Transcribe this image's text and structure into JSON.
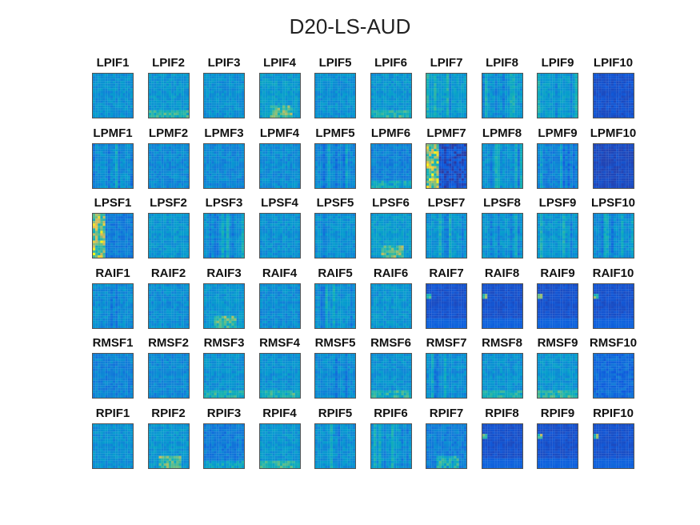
{
  "chart_data": {
    "type": "heatmap",
    "title": "D20-LS-AUD",
    "colormap": "parula",
    "colors": {
      "low": "#352a87",
      "mid": "#1f9ed8",
      "high": "#f9fb0e"
    },
    "rows": [
      "LPIF",
      "LPMF",
      "LPSF",
      "RAIF",
      "RMSF",
      "RPIF"
    ],
    "panels": [
      [
        {
          "label": "LPIF1",
          "level": 0.4,
          "pattern": "none"
        },
        {
          "label": "LPIF2",
          "level": 0.42,
          "pattern": "bottomband"
        },
        {
          "label": "LPIF3",
          "level": 0.4,
          "pattern": "none"
        },
        {
          "label": "LPIF4",
          "level": 0.45,
          "pattern": "hotspot"
        },
        {
          "label": "LPIF5",
          "level": 0.4,
          "pattern": "none"
        },
        {
          "label": "LPIF6",
          "level": 0.42,
          "pattern": "bottomband"
        },
        {
          "label": "LPIF7",
          "level": 0.45,
          "pattern": "stripes"
        },
        {
          "label": "LPIF8",
          "level": 0.42,
          "pattern": "stripes"
        },
        {
          "label": "LPIF9",
          "level": 0.45,
          "pattern": "stripes"
        },
        {
          "label": "LPIF10",
          "level": 0.12,
          "pattern": "none"
        }
      ],
      [
        {
          "label": "LPMF1",
          "level": 0.38,
          "pattern": "stripes"
        },
        {
          "label": "LPMF2",
          "level": 0.36,
          "pattern": "none"
        },
        {
          "label": "LPMF3",
          "level": 0.36,
          "pattern": "none"
        },
        {
          "label": "LPMF4",
          "level": 0.38,
          "pattern": "none"
        },
        {
          "label": "LPMF5",
          "level": 0.35,
          "pattern": "stripes"
        },
        {
          "label": "LPMF6",
          "level": 0.33,
          "pattern": "bottomband"
        },
        {
          "label": "LPMF7",
          "level": 0.12,
          "pattern": "leftbright"
        },
        {
          "label": "LPMF8",
          "level": 0.4,
          "pattern": "stripes"
        },
        {
          "label": "LPMF9",
          "level": 0.33,
          "pattern": "stripes"
        },
        {
          "label": "LPMF10",
          "level": 0.1,
          "pattern": "none"
        }
      ],
      [
        {
          "label": "LPSF1",
          "level": 0.3,
          "pattern": "leftbright"
        },
        {
          "label": "LPSF2",
          "level": 0.42,
          "pattern": "none"
        },
        {
          "label": "LPSF3",
          "level": 0.4,
          "pattern": "stripes"
        },
        {
          "label": "LPSF4",
          "level": 0.4,
          "pattern": "none"
        },
        {
          "label": "LPSF5",
          "level": 0.4,
          "pattern": "stripes"
        },
        {
          "label": "LPSF6",
          "level": 0.45,
          "pattern": "hotspot"
        },
        {
          "label": "LPSF7",
          "level": 0.42,
          "pattern": "stripes"
        },
        {
          "label": "LPSF8",
          "level": 0.42,
          "pattern": "stripes"
        },
        {
          "label": "LPSF9",
          "level": 0.42,
          "pattern": "stripes"
        },
        {
          "label": "LPSF10",
          "level": 0.38,
          "pattern": "stripes"
        }
      ],
      [
        {
          "label": "RAIF1",
          "level": 0.38,
          "pattern": "stripes"
        },
        {
          "label": "RAIF2",
          "level": 0.38,
          "pattern": "none"
        },
        {
          "label": "RAIF3",
          "level": 0.42,
          "pattern": "hotspot"
        },
        {
          "label": "RAIF4",
          "level": 0.38,
          "pattern": "none"
        },
        {
          "label": "RAIF5",
          "level": 0.4,
          "pattern": "stripes"
        },
        {
          "label": "RAIF6",
          "level": 0.42,
          "pattern": "none"
        },
        {
          "label": "RAIF7",
          "level": 0.12,
          "pattern": "leftdot"
        },
        {
          "label": "RAIF8",
          "level": 0.12,
          "pattern": "leftdot"
        },
        {
          "label": "RAIF9",
          "level": 0.12,
          "pattern": "leftdot"
        },
        {
          "label": "RAIF10",
          "level": 0.12,
          "pattern": "leftdot"
        }
      ],
      [
        {
          "label": "RMSF1",
          "level": 0.33,
          "pattern": "none"
        },
        {
          "label": "RMSF2",
          "level": 0.36,
          "pattern": "none"
        },
        {
          "label": "RMSF3",
          "level": 0.4,
          "pattern": "bottomband"
        },
        {
          "label": "RMSF4",
          "level": 0.4,
          "pattern": "bottomband"
        },
        {
          "label": "RMSF5",
          "level": 0.38,
          "pattern": "stripes"
        },
        {
          "label": "RMSF6",
          "level": 0.4,
          "pattern": "bottomband"
        },
        {
          "label": "RMSF7",
          "level": 0.38,
          "pattern": "stripes"
        },
        {
          "label": "RMSF8",
          "level": 0.4,
          "pattern": "bottomband"
        },
        {
          "label": "RMSF9",
          "level": 0.42,
          "pattern": "bottomband"
        },
        {
          "label": "RMSF10",
          "level": 0.22,
          "pattern": "none"
        }
      ],
      [
        {
          "label": "RPIF1",
          "level": 0.4,
          "pattern": "none"
        },
        {
          "label": "RPIF2",
          "level": 0.42,
          "pattern": "hotspot"
        },
        {
          "label": "RPIF3",
          "level": 0.3,
          "pattern": "bottomband"
        },
        {
          "label": "RPIF4",
          "level": 0.42,
          "pattern": "bottomband"
        },
        {
          "label": "RPIF5",
          "level": 0.4,
          "pattern": "stripes"
        },
        {
          "label": "RPIF6",
          "level": 0.42,
          "pattern": "stripes"
        },
        {
          "label": "RPIF7",
          "level": 0.32,
          "pattern": "hotspot"
        },
        {
          "label": "RPIF8",
          "level": 0.12,
          "pattern": "leftdot"
        },
        {
          "label": "RPIF9",
          "level": 0.12,
          "pattern": "leftdot"
        },
        {
          "label": "RPIF10",
          "level": 0.12,
          "pattern": "leftdot"
        }
      ]
    ]
  }
}
